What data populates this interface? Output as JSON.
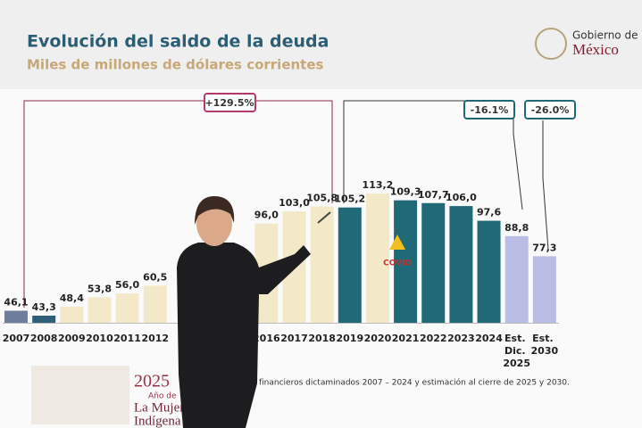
{
  "chart_data": {
    "type": "bar",
    "title": "Evolución del saldo de la deuda",
    "subtitle": "Miles de millones de dólares corrientes",
    "logo": [
      "Gobierno de",
      "México"
    ],
    "categories": [
      "2007",
      "2008",
      "2009",
      "2010",
      "2011",
      "2012",
      null,
      null,
      null,
      "2016",
      "2017",
      "2018",
      "2019",
      "2020",
      "2021",
      "2022",
      "2023",
      "2024",
      "Est. Dic. 2025",
      "Est. 2030"
    ],
    "values": [
      46.1,
      43.3,
      48.4,
      53.8,
      56.0,
      60.5,
      null,
      null,
      null,
      96.0,
      103.0,
      105.8,
      105.2,
      113.2,
      109.3,
      107.7,
      106.0,
      97.6,
      88.8,
      77.3
    ],
    "value_labels": [
      "46,1",
      "43,3",
      "48,4",
      "53,8",
      "56,0",
      "60,5",
      null,
      null,
      null,
      "96,0",
      "103,0",
      "105,8",
      "105,2",
      "113,2",
      "109,3",
      "107,7",
      "106,0",
      "97,6",
      "88,8",
      "77,3"
    ],
    "colors": [
      "#6f7d9c",
      "#2f5f78",
      "#f3e8c8",
      "#f3e8c8",
      "#f3e8c8",
      "#f3e8c8",
      "#f3e8c8",
      "#f3e8c8",
      "#f3e8c8",
      "#f3e8c8",
      "#f3e8c8",
      "#f3e8c8",
      "#1f6a76",
      "#f3e8c8",
      "#1f6a76",
      "#1f6a76",
      "#1f6a76",
      "#1f6a76",
      "#b9bde3",
      "#b9bde3"
    ],
    "annotations": [
      "+129.5%",
      "-16.1%",
      "-26.0%",
      "COVID"
    ],
    "footnote": "financieros dictaminados 2007 – 2024 y estimación al cierre de 2025 y 2030.",
    "banner": [
      "2025",
      "Año de",
      "La Mujer",
      "Indígena"
    ]
  }
}
